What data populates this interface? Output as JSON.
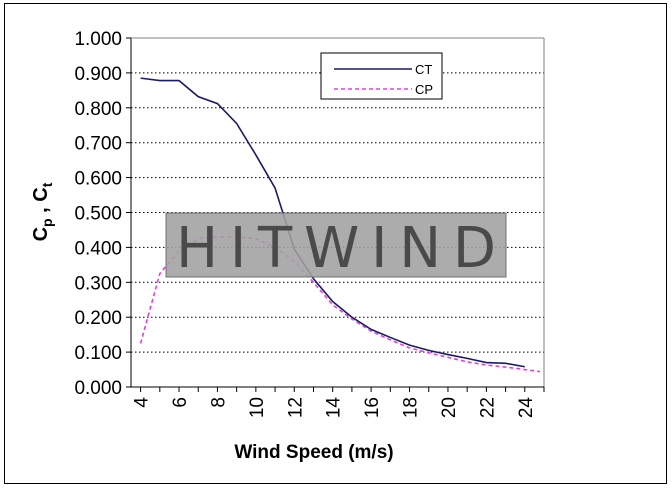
{
  "chart_data": {
    "type": "line",
    "title": "",
    "xlabel": "Wind Speed (m/s)",
    "ylabel_main": "C",
    "ylabel_sub1": "p",
    "ylabel_sep": " , C",
    "ylabel_sub2": "t",
    "xlim": [
      3.5,
      25
    ],
    "ylim": [
      0,
      1.0
    ],
    "x_ticks": [
      4,
      6,
      8,
      10,
      12,
      14,
      16,
      18,
      20,
      22,
      24
    ],
    "y_ticks": [
      "0.000",
      "0.100",
      "0.200",
      "0.300",
      "0.400",
      "0.500",
      "0.600",
      "0.700",
      "0.800",
      "0.900",
      "1.000"
    ],
    "y_tick_values": [
      0,
      0.1,
      0.2,
      0.3,
      0.4,
      0.5,
      0.6,
      0.7,
      0.8,
      0.9,
      1.0
    ],
    "grid": "horizontal-dotted",
    "legend": "top-right",
    "series": [
      {
        "name": "CT",
        "color": "#1a1a66",
        "style": "solid",
        "x": [
          4,
          5,
          6,
          7,
          8,
          9,
          10,
          11,
          12,
          13,
          14,
          15,
          16,
          17,
          18,
          19,
          20,
          21,
          22,
          23,
          24
        ],
        "y": [
          0.885,
          0.878,
          0.878,
          0.832,
          0.812,
          0.755,
          0.665,
          0.57,
          0.395,
          0.31,
          0.245,
          0.2,
          0.165,
          0.142,
          0.12,
          0.105,
          0.093,
          0.082,
          0.07,
          0.068,
          0.058
        ]
      },
      {
        "name": "CP",
        "color": "#e040e0",
        "style": "dashed",
        "x": [
          4,
          5,
          6,
          7,
          8,
          9,
          10,
          11,
          12,
          13,
          14,
          15,
          16,
          17,
          18,
          19,
          20,
          21,
          22,
          23,
          24,
          24.8
        ],
        "y": [
          0.125,
          0.325,
          0.39,
          0.425,
          0.43,
          0.43,
          0.425,
          0.4,
          0.36,
          0.3,
          0.235,
          0.195,
          0.16,
          0.135,
          0.112,
          0.098,
          0.085,
          0.072,
          0.063,
          0.057,
          0.05,
          0.044
        ]
      }
    ]
  },
  "watermark": {
    "text": "HITWIND",
    "color": "#a0a0a0"
  }
}
